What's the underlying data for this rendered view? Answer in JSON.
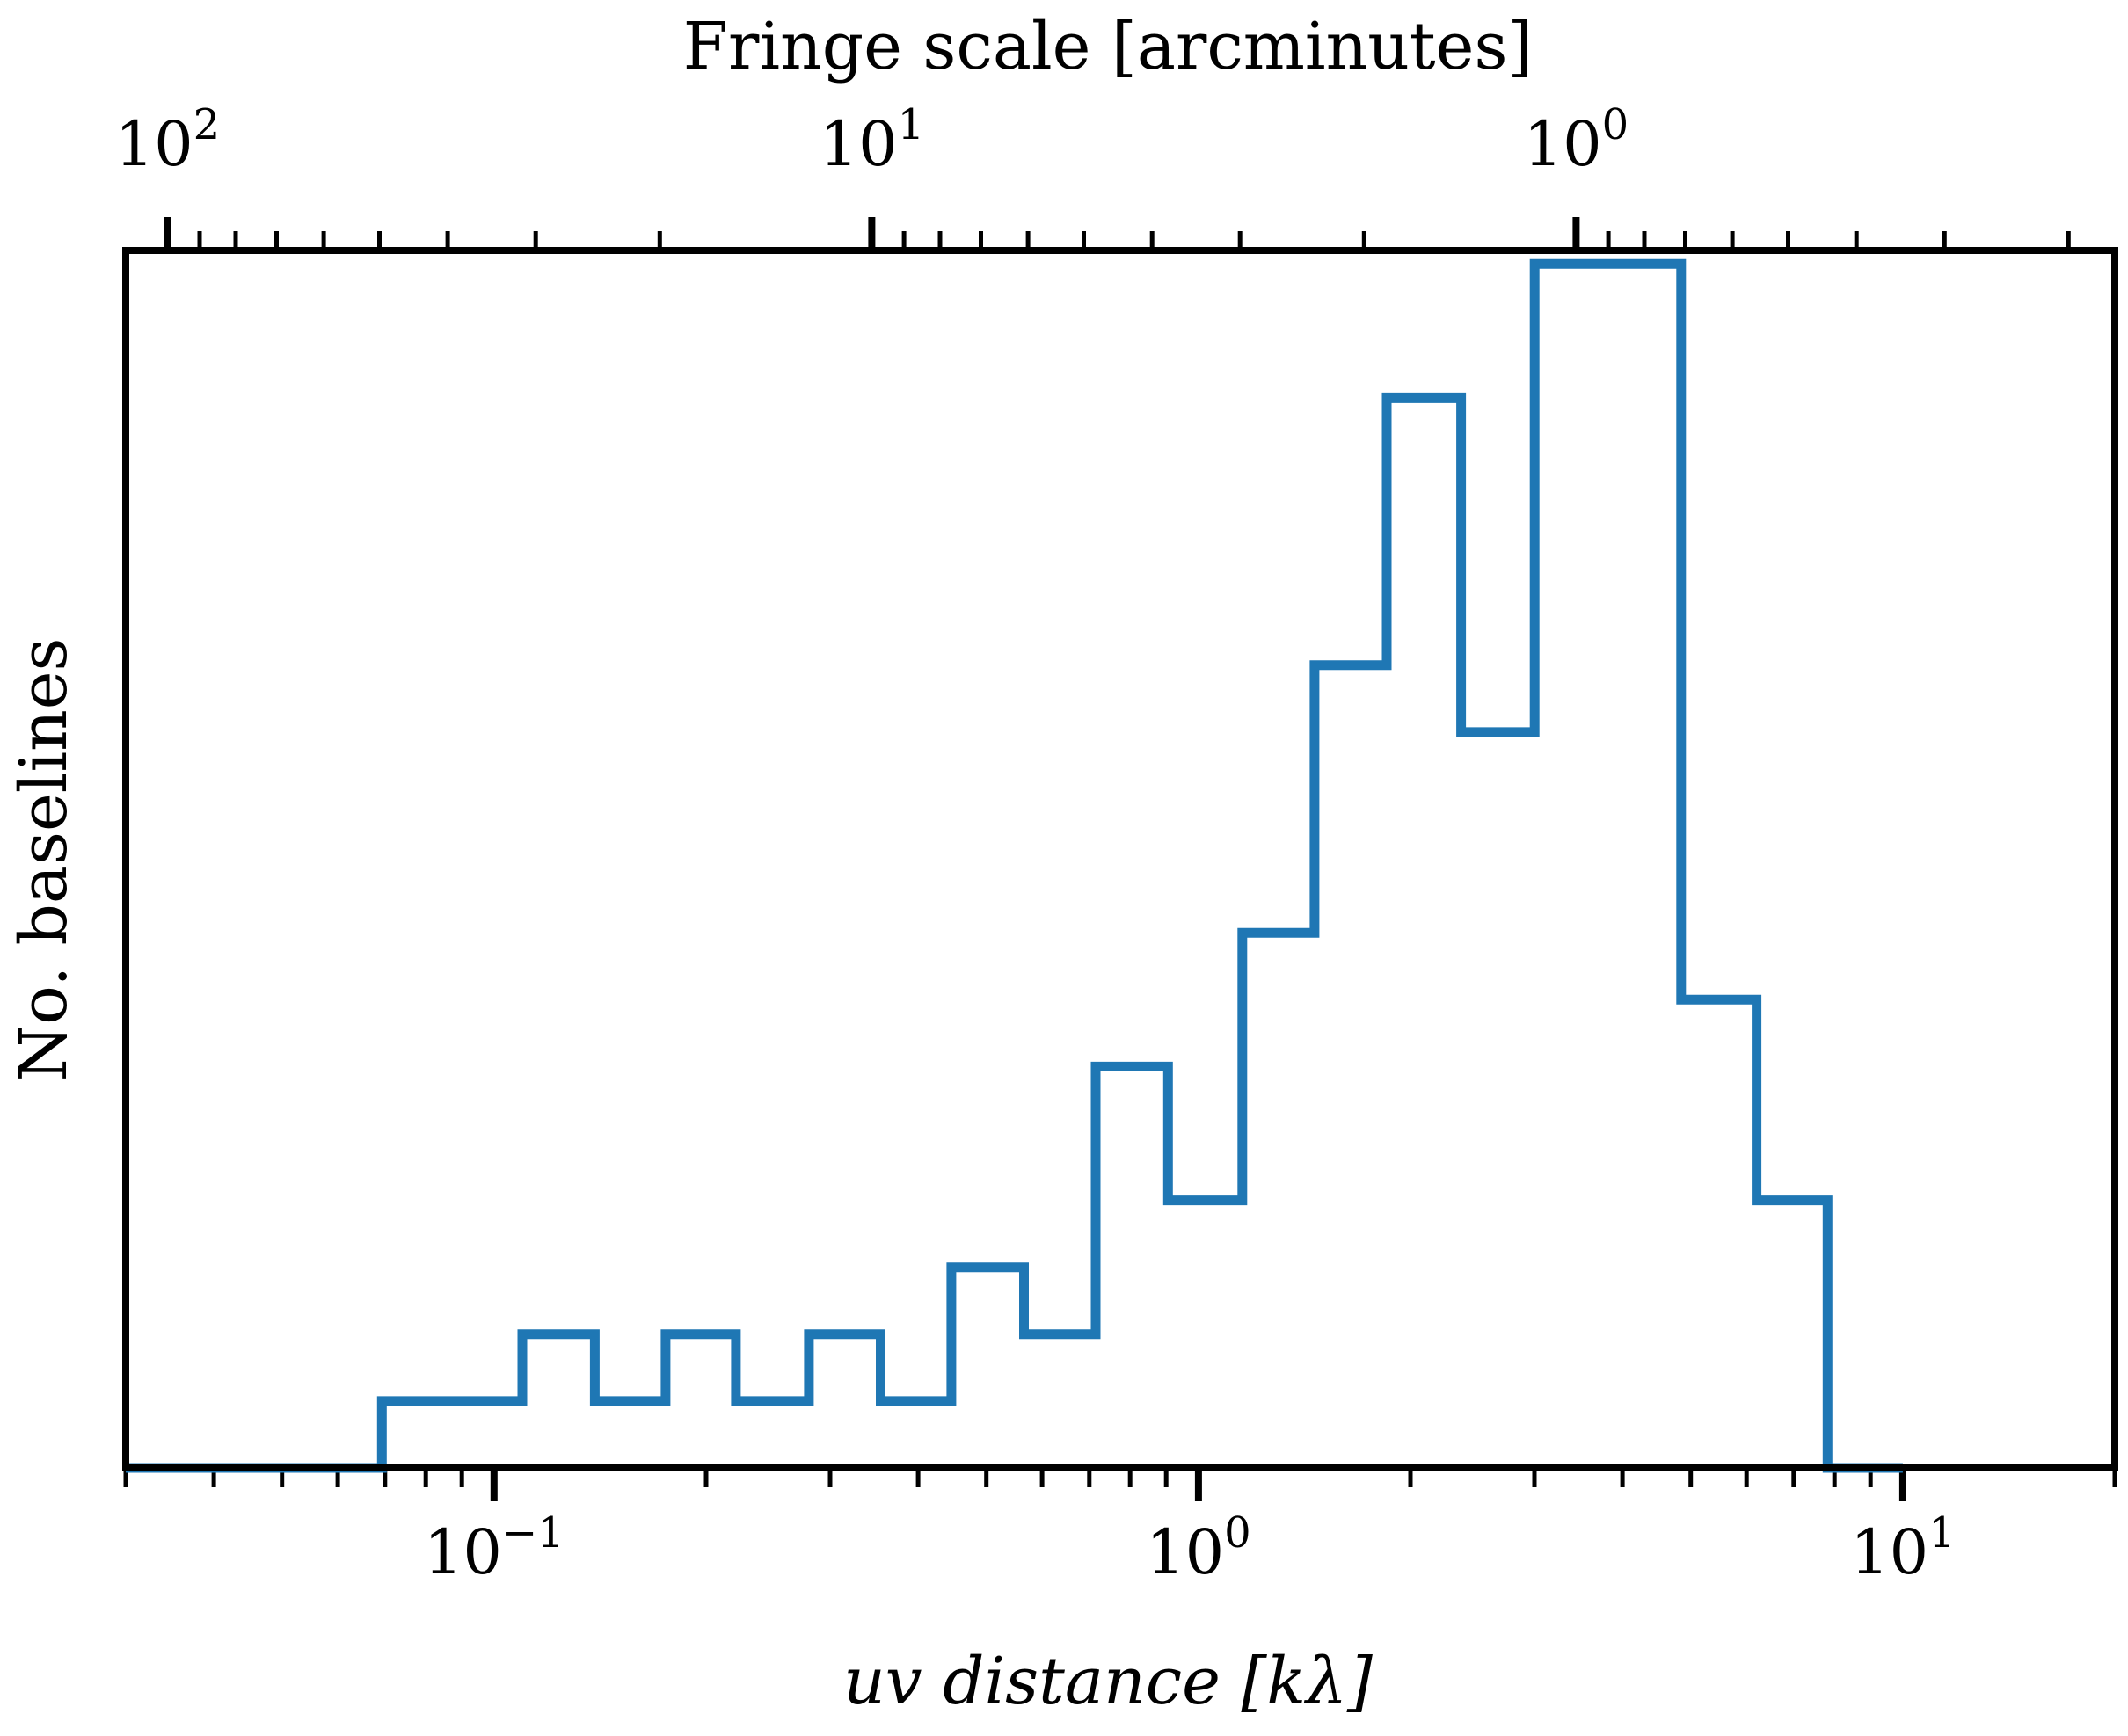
{
  "colors": {
    "histogram": "#1f77b4",
    "axes": "#000000",
    "background": "#ffffff"
  },
  "chart_data": {
    "type": "step-histogram",
    "title": "",
    "xlabel": "uv distance [kλ]",
    "ylabel": "No. baselines",
    "xscale": "log",
    "xlim": [
      0.03,
      20
    ],
    "ylim": [
      0,
      9.1
    ],
    "y_ticks_shown": false,
    "grid": false,
    "legend": "none",
    "x_tick_labels": [
      {
        "value": 0.1,
        "base": "10",
        "exp": "−1"
      },
      {
        "value": 1,
        "base": "10",
        "exp": "0"
      },
      {
        "value": 10,
        "base": "10",
        "exp": "1"
      }
    ],
    "bin_edges": [
      0.03,
      0.0693,
      0.1097,
      0.139,
      0.1752,
      0.2205,
      0.2799,
      0.3539,
      0.4459,
      0.5654,
      0.7147,
      0.9054,
      1.1545,
      1.4617,
      1.8508,
      2.3602,
      3.001,
      4.845,
      6.2007,
      7.82,
      10.0
    ],
    "counts": [
      0,
      0.5,
      1,
      0.5,
      1,
      0.5,
      1,
      0.5,
      1.5,
      1,
      3,
      2,
      4,
      6,
      8,
      5.5,
      9,
      3.5,
      2,
      0
    ],
    "top_axis": {
      "label": "Fringe scale [arcminutes]",
      "relation": "fringe_scale_arcmin = 3437.75 / uv_distance_lambda",
      "tick_labels": [
        {
          "value": 100,
          "base": "10",
          "exp": "2"
        },
        {
          "value": 10,
          "base": "10",
          "exp": "1"
        },
        {
          "value": 1,
          "base": "10",
          "exp": "0"
        }
      ]
    }
  }
}
